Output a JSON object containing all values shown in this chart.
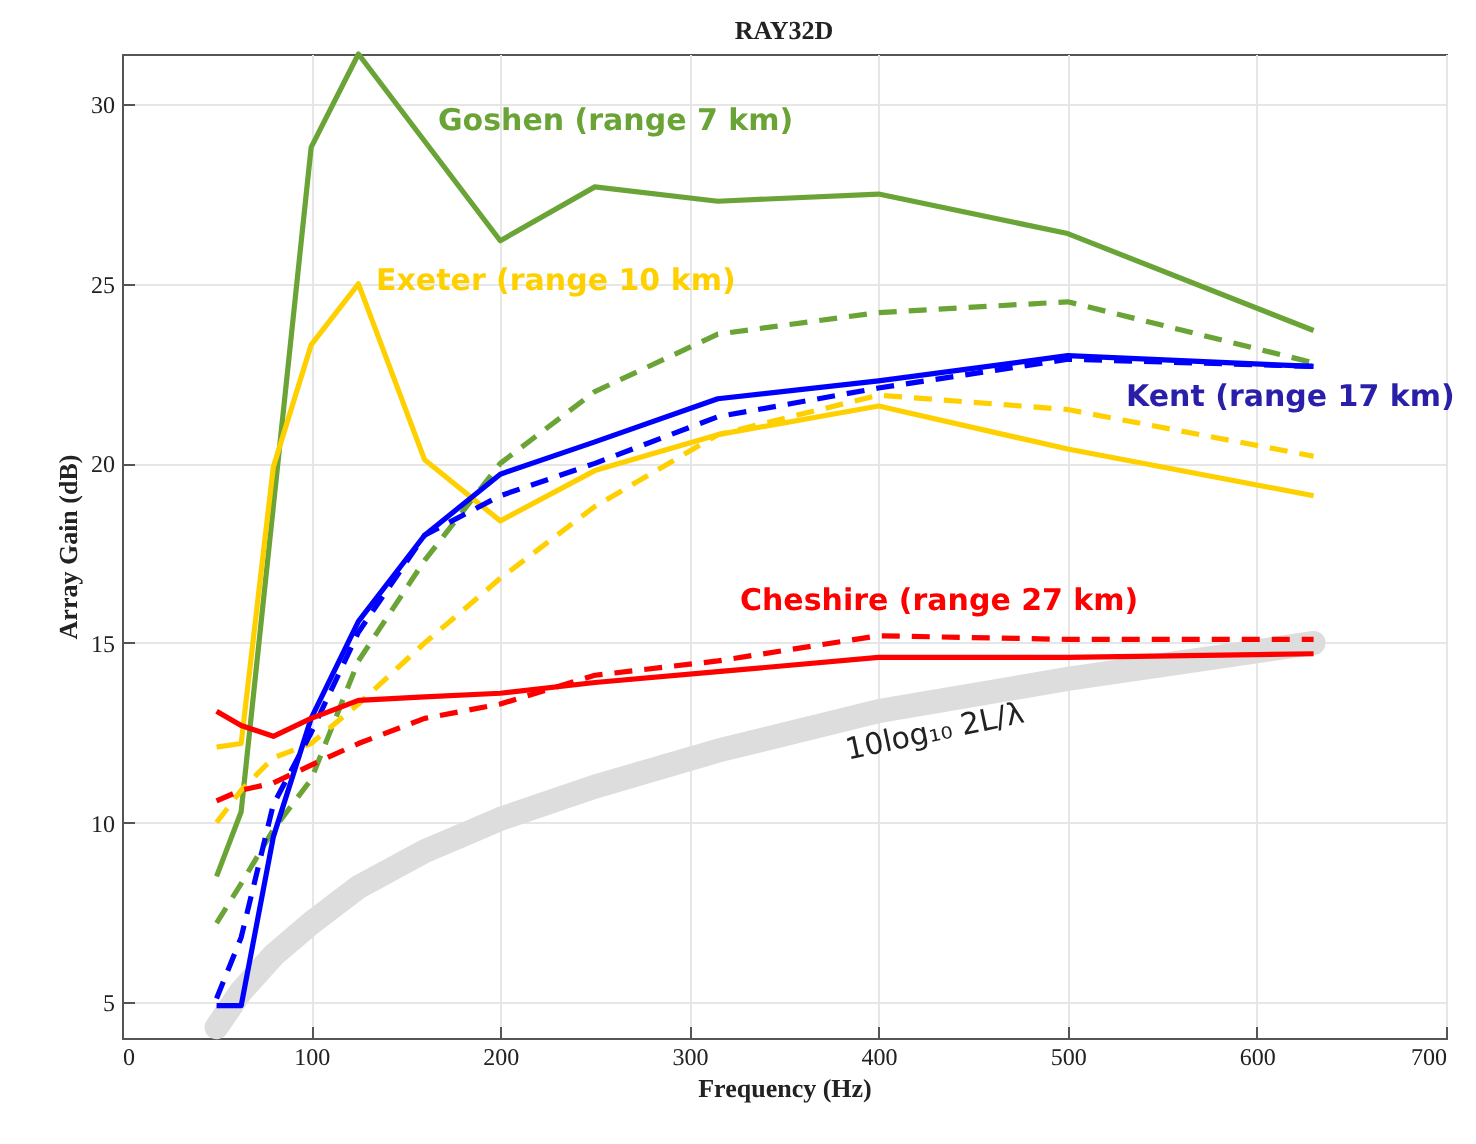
{
  "chart_data": {
    "type": "line",
    "title": "RAY32D",
    "xlabel": "Frequency (Hz)",
    "ylabel": "Array Gain (dB)",
    "x": [
      50,
      63,
      80,
      100,
      125,
      160,
      200,
      250,
      315,
      400,
      500,
      630
    ],
    "xlim": [
      0,
      700
    ],
    "xticks": [
      0,
      100,
      200,
      300,
      400,
      500,
      600,
      700
    ],
    "ylim": [
      4,
      31.4
    ],
    "yticks": [
      5,
      10,
      15,
      20,
      25,
      30
    ],
    "grid": true,
    "marker": "none",
    "series": [
      {
        "name": "10log₁₀ 2L/λ",
        "color": "#dddddd",
        "values": [
          4.3,
          5.3,
          6.3,
          7.2,
          8.2,
          9.2,
          10.1,
          11.0,
          12.0,
          13.1,
          14.0,
          15.0
        ]
      },
      {
        "name": "Goshen (range 7 km)",
        "color": "#6aa336",
        "x": [
          50,
          63,
          100,
          125,
          200,
          250,
          315,
          400,
          500,
          630
        ],
        "values": [
          8.5,
          10.3,
          28.8,
          31.4,
          26.2,
          27.7,
          27.3,
          27.5,
          26.4,
          23.7
        ]
      },
      {
        "color": "#6aa336",
        "line_style": "dashed",
        "values": [
          7.2,
          8.3,
          9.8,
          11.2,
          14.5,
          17.3,
          20.0,
          22.0,
          23.6,
          24.2,
          24.5,
          22.8
        ]
      },
      {
        "name": "Exeter (range 10 km)",
        "color": "#ffd000",
        "values": [
          12.1,
          12.2,
          19.9,
          23.3,
          25.0,
          20.1,
          18.4,
          19.8,
          20.8,
          21.6,
          20.4,
          19.1
        ]
      },
      {
        "color": "#ffd000",
        "line_style": "dashed",
        "values": [
          10.0,
          10.9,
          11.8,
          12.2,
          13.3,
          15.0,
          16.8,
          18.8,
          20.8,
          21.9,
          21.5,
          20.2
        ]
      },
      {
        "name": "Kent (range 17 km)",
        "color": "#0000ff",
        "values": [
          4.9,
          4.9,
          9.6,
          12.9,
          15.6,
          18.0,
          19.7,
          20.6,
          21.8,
          22.3,
          23.0,
          22.7
        ]
      },
      {
        "color": "#0000ff",
        "line_style": "dashed",
        "values": [
          5.1,
          6.8,
          10.5,
          12.5,
          15.3,
          18.0,
          19.1,
          20.0,
          21.3,
          22.1,
          22.9,
          22.7
        ]
      },
      {
        "name": "Cheshire (range 27 km)",
        "color": "#ff0000",
        "values": [
          13.1,
          12.7,
          12.4,
          12.9,
          13.4,
          13.5,
          13.6,
          13.9,
          14.2,
          14.6,
          14.6,
          14.7
        ]
      },
      {
        "color": "#ff0000",
        "line_style": "dashed",
        "values": [
          10.6,
          10.9,
          11.1,
          11.6,
          12.2,
          12.9,
          13.3,
          14.1,
          14.5,
          15.2,
          15.1,
          15.1
        ]
      }
    ]
  }
}
